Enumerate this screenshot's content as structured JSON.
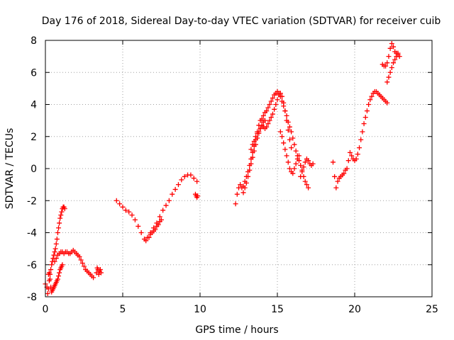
{
  "chart_data": {
    "type": "scatter",
    "title": "Day 176 of 2018, Sidereal Day-to-day VTEC variation (SDTVAR) for receiver cuib",
    "xlabel": "GPS time / hours",
    "ylabel": "SDTVAR / TECUs",
    "xlim": [
      0,
      25
    ],
    "ylim": [
      -8,
      8
    ],
    "xticks": [
      0,
      5,
      10,
      15,
      20,
      25
    ],
    "yticks": [
      -8,
      -6,
      -4,
      -2,
      0,
      2,
      4,
      6,
      8
    ],
    "grid": true,
    "marker": "+",
    "marker_color": "#ff0000",
    "series": [
      {
        "name": "s1",
        "x": [
          0.0,
          0.1
        ],
        "y": [
          -7.2,
          -7.4
        ]
      },
      {
        "name": "s2",
        "x": [
          0.15,
          0.2,
          0.25,
          0.3,
          0.35,
          0.4,
          0.45,
          0.5,
          0.55,
          0.6,
          0.65,
          0.7,
          0.75,
          0.8,
          0.85,
          0.9,
          0.95,
          1.0,
          1.05,
          1.1,
          1.15,
          1.2,
          1.25
        ],
        "y": [
          -7.8,
          -7.5,
          -7.0,
          -6.6,
          -6.3,
          -6.0,
          -5.8,
          -5.6,
          -5.4,
          -5.2,
          -5.0,
          -4.7,
          -4.4,
          -4.0,
          -3.7,
          -3.4,
          -3.1,
          -2.9,
          -2.7,
          -2.5,
          -2.4,
          -2.4,
          -2.5
        ]
      },
      {
        "name": "s3",
        "x": [
          0.2,
          0.25,
          0.3,
          0.35,
          0.4,
          0.45,
          0.5,
          0.55,
          0.6,
          0.65,
          0.7,
          0.75,
          0.8,
          0.85,
          0.9,
          0.95,
          1.0,
          1.05,
          1.1
        ],
        "y": [
          -6.6,
          -6.5,
          -6.9,
          -7.4,
          -7.7,
          -7.6,
          -7.5,
          -7.4,
          -7.3,
          -7.2,
          -7.1,
          -7.0,
          -6.9,
          -6.7,
          -6.5,
          -6.3,
          -6.2,
          -6.1,
          -6.0
        ]
      },
      {
        "name": "s4",
        "x": [
          0.6,
          0.7,
          0.8,
          0.9,
          1.0,
          1.1,
          1.2,
          1.3,
          1.4,
          1.5,
          1.6,
          1.7,
          1.8,
          1.9,
          2.0,
          2.1,
          2.2,
          2.3,
          2.4,
          2.5,
          2.6,
          2.7,
          2.8,
          2.9,
          3.0,
          3.1
        ],
        "y": [
          -5.8,
          -5.6,
          -5.4,
          -5.3,
          -5.2,
          -5.2,
          -5.3,
          -5.2,
          -5.2,
          -5.3,
          -5.3,
          -5.2,
          -5.1,
          -5.2,
          -5.3,
          -5.4,
          -5.5,
          -5.7,
          -5.9,
          -6.1,
          -6.3,
          -6.4,
          -6.5,
          -6.6,
          -6.7,
          -6.8
        ]
      },
      {
        "name": "s5",
        "x": [
          3.3,
          3.35,
          3.4,
          3.45,
          3.5,
          3.55,
          3.6
        ],
        "y": [
          -6.5,
          -6.2,
          -6.3,
          -6.6,
          -6.4,
          -6.3,
          -6.5
        ]
      },
      {
        "name": "s6",
        "x": [
          4.6,
          4.8,
          5.0,
          5.2,
          5.4,
          5.6,
          5.8,
          6.0,
          6.2,
          6.4,
          6.5,
          6.6,
          6.8,
          7.0,
          7.2,
          7.4,
          7.6,
          7.8,
          8.0,
          8.2,
          8.4,
          8.6,
          8.8,
          9.0,
          9.2,
          9.4,
          9.6,
          9.8
        ],
        "y": [
          -2.0,
          -2.2,
          -2.4,
          -2.6,
          -2.7,
          -2.9,
          -3.2,
          -3.6,
          -4.0,
          -4.4,
          -4.5,
          -4.3,
          -4.0,
          -3.7,
          -3.4,
          -3.0,
          -2.6,
          -2.3,
          -2.0,
          -1.6,
          -1.3,
          -1.0,
          -0.7,
          -0.5,
          -0.4,
          -0.4,
          -0.6,
          -0.8
        ]
      },
      {
        "name": "s7",
        "x": [
          6.7,
          6.8,
          6.9,
          7.0,
          7.1,
          7.2,
          7.3,
          7.4,
          7.5
        ],
        "y": [
          -4.3,
          -4.1,
          -4.0,
          -3.9,
          -3.8,
          -3.6,
          -3.5,
          -3.3,
          -3.2
        ]
      },
      {
        "name": "s8",
        "x": [
          9.7,
          9.75,
          9.8,
          9.85
        ],
        "y": [
          -1.6,
          -1.7,
          -1.8,
          -1.7
        ]
      },
      {
        "name": "s9",
        "x": [
          12.3,
          12.4,
          12.5,
          12.6,
          12.7,
          12.8,
          12.9,
          13.0,
          13.1,
          13.2,
          13.3,
          13.4,
          13.5,
          13.6,
          13.7,
          13.8,
          13.9,
          14.0,
          14.1,
          14.2,
          14.3,
          14.4,
          14.5,
          14.6,
          14.7,
          14.8,
          14.9,
          15.0,
          15.1,
          15.2,
          15.3,
          15.4,
          15.5,
          15.6,
          15.7,
          15.8,
          15.9,
          16.0,
          16.1,
          16.2,
          16.3,
          16.4,
          16.5,
          16.6,
          16.7,
          16.8,
          16.9,
          17.0
        ],
        "y": [
          -2.2,
          -1.6,
          -1.2,
          -1.0,
          -1.2,
          -1.1,
          -0.8,
          -0.5,
          -0.2,
          0.2,
          0.6,
          1.0,
          1.4,
          1.8,
          2.3,
          2.7,
          3.0,
          3.1,
          3.3,
          3.5,
          3.6,
          3.8,
          4.0,
          4.2,
          4.4,
          4.6,
          4.7,
          4.8,
          4.7,
          4.5,
          4.2,
          3.9,
          3.6,
          3.3,
          2.9,
          2.6,
          2.3,
          1.9,
          1.5,
          1.1,
          0.8,
          0.5,
          0.2,
          -0.1,
          -0.5,
          -0.8,
          -1.0,
          -1.2
        ]
      },
      {
        "name": "s10",
        "x": [
          12.8,
          12.9,
          13.0,
          13.1,
          13.2,
          13.3,
          13.4,
          13.5,
          13.6,
          13.7,
          13.8,
          13.9,
          14.0,
          14.1,
          14.2,
          14.3,
          14.4,
          14.5,
          14.6,
          14.7,
          14.8,
          14.9,
          15.0,
          15.1,
          15.2,
          15.3,
          15.4,
          15.5,
          15.6,
          15.7,
          15.8,
          15.9
        ],
        "y": [
          -1.5,
          -1.2,
          -0.9,
          -0.5,
          -0.1,
          0.3,
          0.7,
          1.1,
          1.5,
          1.9,
          2.2,
          2.5,
          2.7,
          2.6,
          2.5,
          2.6,
          2.8,
          3.0,
          3.2,
          3.4,
          3.7,
          4.0,
          4.3,
          4.6,
          4.7,
          4.5,
          4.1,
          3.6,
          3.0,
          2.4,
          1.8,
          1.3
        ]
      },
      {
        "name": "s11",
        "x": [
          13.3,
          13.4,
          13.5,
          13.6,
          13.7,
          13.8,
          13.9,
          14.0,
          14.1,
          14.2
        ],
        "y": [
          1.2,
          1.5,
          1.7,
          2.0,
          2.2,
          2.3,
          2.5,
          2.7,
          2.9,
          3.0
        ]
      },
      {
        "name": "s12",
        "x": [
          15.2,
          15.3,
          15.4,
          15.5,
          15.6,
          15.7,
          15.8,
          15.9,
          16.0,
          16.1,
          16.2,
          16.3,
          16.4
        ],
        "y": [
          2.3,
          2.0,
          1.6,
          1.2,
          0.8,
          0.4,
          0.0,
          -0.2,
          -0.3,
          0.0,
          0.3,
          0.6,
          0.8
        ]
      },
      {
        "name": "s13",
        "x": [
          16.5,
          16.6,
          16.7,
          16.8,
          16.9,
          17.0,
          17.1,
          17.2,
          17.3
        ],
        "y": [
          -0.5,
          -0.2,
          0.1,
          0.4,
          0.6,
          0.5,
          0.3,
          0.2,
          0.3
        ]
      },
      {
        "name": "s14",
        "x": [
          18.6,
          18.7,
          18.8,
          18.9,
          19.0,
          19.1,
          19.2,
          19.3,
          19.4,
          19.5,
          19.6,
          19.7,
          19.8,
          19.9,
          20.0,
          20.1,
          20.2,
          20.3,
          20.4,
          20.5,
          20.6,
          20.7,
          20.8,
          20.9,
          21.0,
          21.1,
          21.2,
          21.3,
          21.4,
          21.5,
          21.6,
          21.7,
          21.8,
          21.9,
          22.0,
          22.1
        ],
        "y": [
          0.4,
          -0.5,
          -1.2,
          -0.8,
          -0.6,
          -0.5,
          -0.4,
          -0.3,
          -0.1,
          0.0,
          0.5,
          1.0,
          0.8,
          0.6,
          0.5,
          0.6,
          0.9,
          1.3,
          1.8,
          2.3,
          2.8,
          3.2,
          3.6,
          4.0,
          4.3,
          4.5,
          4.7,
          4.8,
          4.8,
          4.7,
          4.6,
          4.5,
          4.4,
          4.3,
          4.2,
          4.1
        ]
      },
      {
        "name": "s15",
        "x": [
          21.8,
          21.9,
          22.0,
          22.1,
          22.2,
          22.3,
          22.4,
          22.5,
          22.6,
          22.7,
          22.8
        ],
        "y": [
          6.5,
          6.4,
          6.4,
          6.6,
          7.0,
          7.5,
          7.8,
          7.6,
          7.3,
          7.2,
          7.2
        ]
      },
      {
        "name": "s16",
        "x": [
          22.1,
          22.2,
          22.3,
          22.4,
          22.5,
          22.6,
          22.7,
          22.8,
          22.9
        ],
        "y": [
          5.4,
          5.7,
          6.0,
          6.3,
          6.6,
          6.8,
          7.0,
          7.1,
          7.0
        ]
      }
    ]
  }
}
